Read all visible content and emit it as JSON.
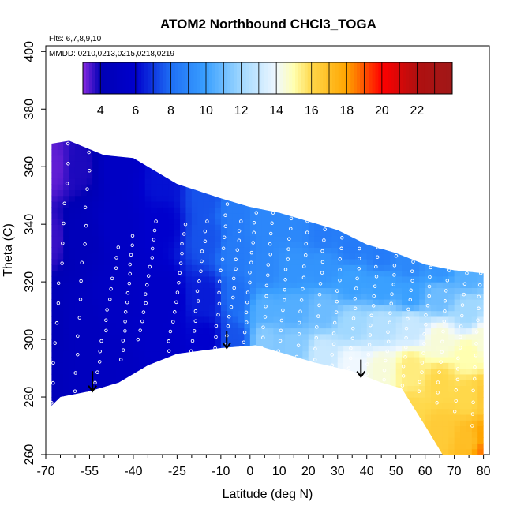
{
  "chart_data": {
    "type": "heatmap",
    "title": "ATOM2 Northbound CHCl3_TOGA",
    "annotations": [
      "Flts: 6,7,8,9,10",
      "MMDD: 0210,0213,0215,0218,0219"
    ],
    "xlabel": "Latitude (deg N)",
    "ylabel": "Theta (C)",
    "xlim": [
      -70,
      82
    ],
    "ylim": [
      260,
      402
    ],
    "x_ticks": [
      -70,
      -55,
      -40,
      -25,
      -10,
      0,
      10,
      20,
      30,
      40,
      50,
      60,
      70,
      80
    ],
    "y_ticks": [
      260,
      280,
      300,
      320,
      340,
      360,
      380,
      400
    ],
    "colorbar": {
      "range": [
        3,
        24
      ],
      "ticks": [
        4,
        6,
        8,
        10,
        12,
        14,
        16,
        18,
        20,
        22
      ],
      "stops": [
        {
          "value": 3,
          "color": "#8a2be2"
        },
        {
          "value": 4,
          "color": "#0000b4"
        },
        {
          "value": 6,
          "color": "#0000cd"
        },
        {
          "value": 8,
          "color": "#1e6ff5"
        },
        {
          "value": 10,
          "color": "#3aa0ff"
        },
        {
          "value": 12,
          "color": "#a0d8ff"
        },
        {
          "value": 14,
          "color": "#f0f8ff"
        },
        {
          "value": 15,
          "color": "#ffffb0"
        },
        {
          "value": 16,
          "color": "#ffd84a"
        },
        {
          "value": 18,
          "color": "#ffa400"
        },
        {
          "value": 20,
          "color": "#ff0000"
        },
        {
          "value": 22,
          "color": "#b01010"
        },
        {
          "value": 24,
          "color": "#a01818"
        }
      ]
    },
    "domain_upper": [
      [
        -68,
        368
      ],
      [
        -62,
        369
      ],
      [
        -50,
        364
      ],
      [
        -40,
        363
      ],
      [
        -25,
        354
      ],
      [
        -10,
        349
      ],
      [
        0,
        346
      ],
      [
        10,
        344
      ],
      [
        20,
        341
      ],
      [
        30,
        338
      ],
      [
        40,
        333
      ],
      [
        50,
        330
      ],
      [
        60,
        326
      ],
      [
        70,
        324
      ],
      [
        80,
        323
      ]
    ],
    "domain_lower": [
      [
        -68,
        277
      ],
      [
        -65,
        280
      ],
      [
        -55,
        282
      ],
      [
        -45,
        285
      ],
      [
        -35,
        291
      ],
      [
        -25,
        295
      ],
      [
        -10,
        297
      ],
      [
        2,
        298
      ],
      [
        12,
        295
      ],
      [
        22,
        292
      ],
      [
        35,
        289
      ],
      [
        45,
        285
      ],
      [
        52,
        283
      ],
      [
        60,
        270
      ],
      [
        66,
        260
      ],
      [
        80,
        260
      ]
    ],
    "field_anchors": [
      {
        "lat": -68,
        "theta": 360,
        "value": 3.3
      },
      {
        "lat": -68,
        "theta": 335,
        "value": 3.6
      },
      {
        "lat": -68,
        "theta": 305,
        "value": 4.3
      },
      {
        "lat": -68,
        "theta": 285,
        "value": 4.5
      },
      {
        "lat": -58,
        "theta": 360,
        "value": 3.8
      },
      {
        "lat": -58,
        "theta": 335,
        "value": 4.5
      },
      {
        "lat": -58,
        "theta": 305,
        "value": 4.8
      },
      {
        "lat": -58,
        "theta": 285,
        "value": 4.8
      },
      {
        "lat": -45,
        "theta": 360,
        "value": 5.3
      },
      {
        "lat": -45,
        "theta": 340,
        "value": 5.3
      },
      {
        "lat": -45,
        "theta": 315,
        "value": 5.2
      },
      {
        "lat": -45,
        "theta": 290,
        "value": 5.0
      },
      {
        "lat": -30,
        "theta": 355,
        "value": 6.3
      },
      {
        "lat": -30,
        "theta": 340,
        "value": 6.0
      },
      {
        "lat": -30,
        "theta": 315,
        "value": 5.5
      },
      {
        "lat": -30,
        "theta": 295,
        "value": 5.5
      },
      {
        "lat": -15,
        "theta": 350,
        "value": 7.5
      },
      {
        "lat": -15,
        "theta": 335,
        "value": 7.5
      },
      {
        "lat": -15,
        "theta": 315,
        "value": 6.5
      },
      {
        "lat": -15,
        "theta": 300,
        "value": 6.0
      },
      {
        "lat": -5,
        "theta": 345,
        "value": 8.5
      },
      {
        "lat": -5,
        "theta": 330,
        "value": 8.5
      },
      {
        "lat": -5,
        "theta": 315,
        "value": 8.0
      },
      {
        "lat": -5,
        "theta": 300,
        "value": 7.5
      },
      {
        "lat": 5,
        "theta": 342,
        "value": 9.0
      },
      {
        "lat": 5,
        "theta": 325,
        "value": 9.0
      },
      {
        "lat": 5,
        "theta": 310,
        "value": 10.5
      },
      {
        "lat": 5,
        "theta": 300,
        "value": 11.5
      },
      {
        "lat": 15,
        "theta": 340,
        "value": 9.0
      },
      {
        "lat": 15,
        "theta": 325,
        "value": 9.5
      },
      {
        "lat": 15,
        "theta": 310,
        "value": 10.5
      },
      {
        "lat": 15,
        "theta": 298,
        "value": 11.5
      },
      {
        "lat": 25,
        "theta": 337,
        "value": 8.5
      },
      {
        "lat": 25,
        "theta": 325,
        "value": 9.5
      },
      {
        "lat": 25,
        "theta": 310,
        "value": 11.0
      },
      {
        "lat": 25,
        "theta": 295,
        "value": 13.0
      },
      {
        "lat": 35,
        "theta": 333,
        "value": 8.5
      },
      {
        "lat": 35,
        "theta": 320,
        "value": 10.0
      },
      {
        "lat": 35,
        "theta": 305,
        "value": 12.0
      },
      {
        "lat": 35,
        "theta": 292,
        "value": 14.0
      },
      {
        "lat": 45,
        "theta": 330,
        "value": 8.5
      },
      {
        "lat": 45,
        "theta": 318,
        "value": 10.0
      },
      {
        "lat": 45,
        "theta": 305,
        "value": 12.5
      },
      {
        "lat": 45,
        "theta": 290,
        "value": 14.5
      },
      {
        "lat": 55,
        "theta": 327,
        "value": 9.0
      },
      {
        "lat": 55,
        "theta": 315,
        "value": 10.0
      },
      {
        "lat": 55,
        "theta": 305,
        "value": 13.0
      },
      {
        "lat": 55,
        "theta": 290,
        "value": 15.5
      },
      {
        "lat": 55,
        "theta": 275,
        "value": 16.0
      },
      {
        "lat": 65,
        "theta": 325,
        "value": 9.5
      },
      {
        "lat": 65,
        "theta": 315,
        "value": 11.0
      },
      {
        "lat": 65,
        "theta": 300,
        "value": 14.5
      },
      {
        "lat": 65,
        "theta": 285,
        "value": 16.0
      },
      {
        "lat": 65,
        "theta": 268,
        "value": 16.5
      },
      {
        "lat": 75,
        "theta": 323,
        "value": 10.5
      },
      {
        "lat": 75,
        "theta": 310,
        "value": 12.0
      },
      {
        "lat": 75,
        "theta": 295,
        "value": 15.0
      },
      {
        "lat": 75,
        "theta": 280,
        "value": 16.0
      },
      {
        "lat": 75,
        "theta": 265,
        "value": 17.0
      },
      {
        "lat": 80,
        "theta": 300,
        "value": 14.5
      },
      {
        "lat": 80,
        "theta": 280,
        "value": 16.5
      },
      {
        "lat": 80,
        "theta": 266,
        "value": 18.0
      },
      {
        "lat": 80,
        "theta": 261,
        "value": 18.5
      }
    ],
    "profiles": [
      {
        "lat": [
          -68,
          -62
        ],
        "theta": [
          278,
          368
        ]
      },
      {
        "lat": [
          -60,
          -55
        ],
        "theta": [
          282,
          365
        ]
      },
      {
        "lat": [
          -53,
          -45
        ],
        "theta": [
          285,
          332
        ]
      },
      {
        "lat": [
          -44,
          -40
        ],
        "theta": [
          293,
          336
        ]
      },
      {
        "lat": [
          -38,
          -32
        ],
        "theta": [
          300,
          341
        ]
      },
      {
        "lat": [
          -28,
          -22
        ],
        "theta": [
          296,
          340
        ]
      },
      {
        "lat": [
          -20,
          -15
        ],
        "theta": [
          296,
          341
        ]
      },
      {
        "lat": [
          -12,
          -8
        ],
        "theta": [
          297,
          347
        ]
      },
      {
        "lat": [
          -8,
          -3
        ],
        "theta": [
          298,
          341
        ]
      },
      {
        "lat": [
          -2,
          2
        ],
        "theta": [
          299,
          344
        ]
      },
      {
        "lat": [
          4,
          8
        ],
        "theta": [
          297,
          344
        ]
      },
      {
        "lat": [
          10,
          14
        ],
        "theta": [
          296,
          342
        ]
      },
      {
        "lat": [
          16,
          20
        ],
        "theta": [
          294,
          345
        ]
      },
      {
        "lat": [
          22,
          26
        ],
        "theta": [
          293,
          342
        ]
      },
      {
        "lat": [
          28,
          32
        ],
        "theta": [
          291,
          339
        ]
      },
      {
        "lat": [
          34,
          38
        ],
        "theta": [
          290,
          335
        ]
      },
      {
        "lat": [
          40,
          44
        ],
        "theta": [
          288,
          332
        ]
      },
      {
        "lat": [
          46,
          50
        ],
        "theta": [
          286,
          329
        ]
      },
      {
        "lat": [
          52,
          56
        ],
        "theta": [
          284,
          327
        ]
      },
      {
        "lat": [
          58,
          62
        ],
        "theta": [
          282,
          325
        ]
      },
      {
        "lat": [
          64,
          68
        ],
        "theta": [
          278,
          324
        ]
      },
      {
        "lat": [
          70,
          74
        ],
        "theta": [
          275,
          323
        ]
      },
      {
        "lat": [
          76,
          79
        ],
        "theta": [
          270,
          323
        ]
      }
    ],
    "arrows": [
      {
        "lat": -54,
        "theta_top": 289,
        "theta_bottom": 282
      },
      {
        "lat": -8,
        "theta_top": 303,
        "theta_bottom": 297
      },
      {
        "lat": 38,
        "theta_top": 293,
        "theta_bottom": 287
      }
    ]
  }
}
